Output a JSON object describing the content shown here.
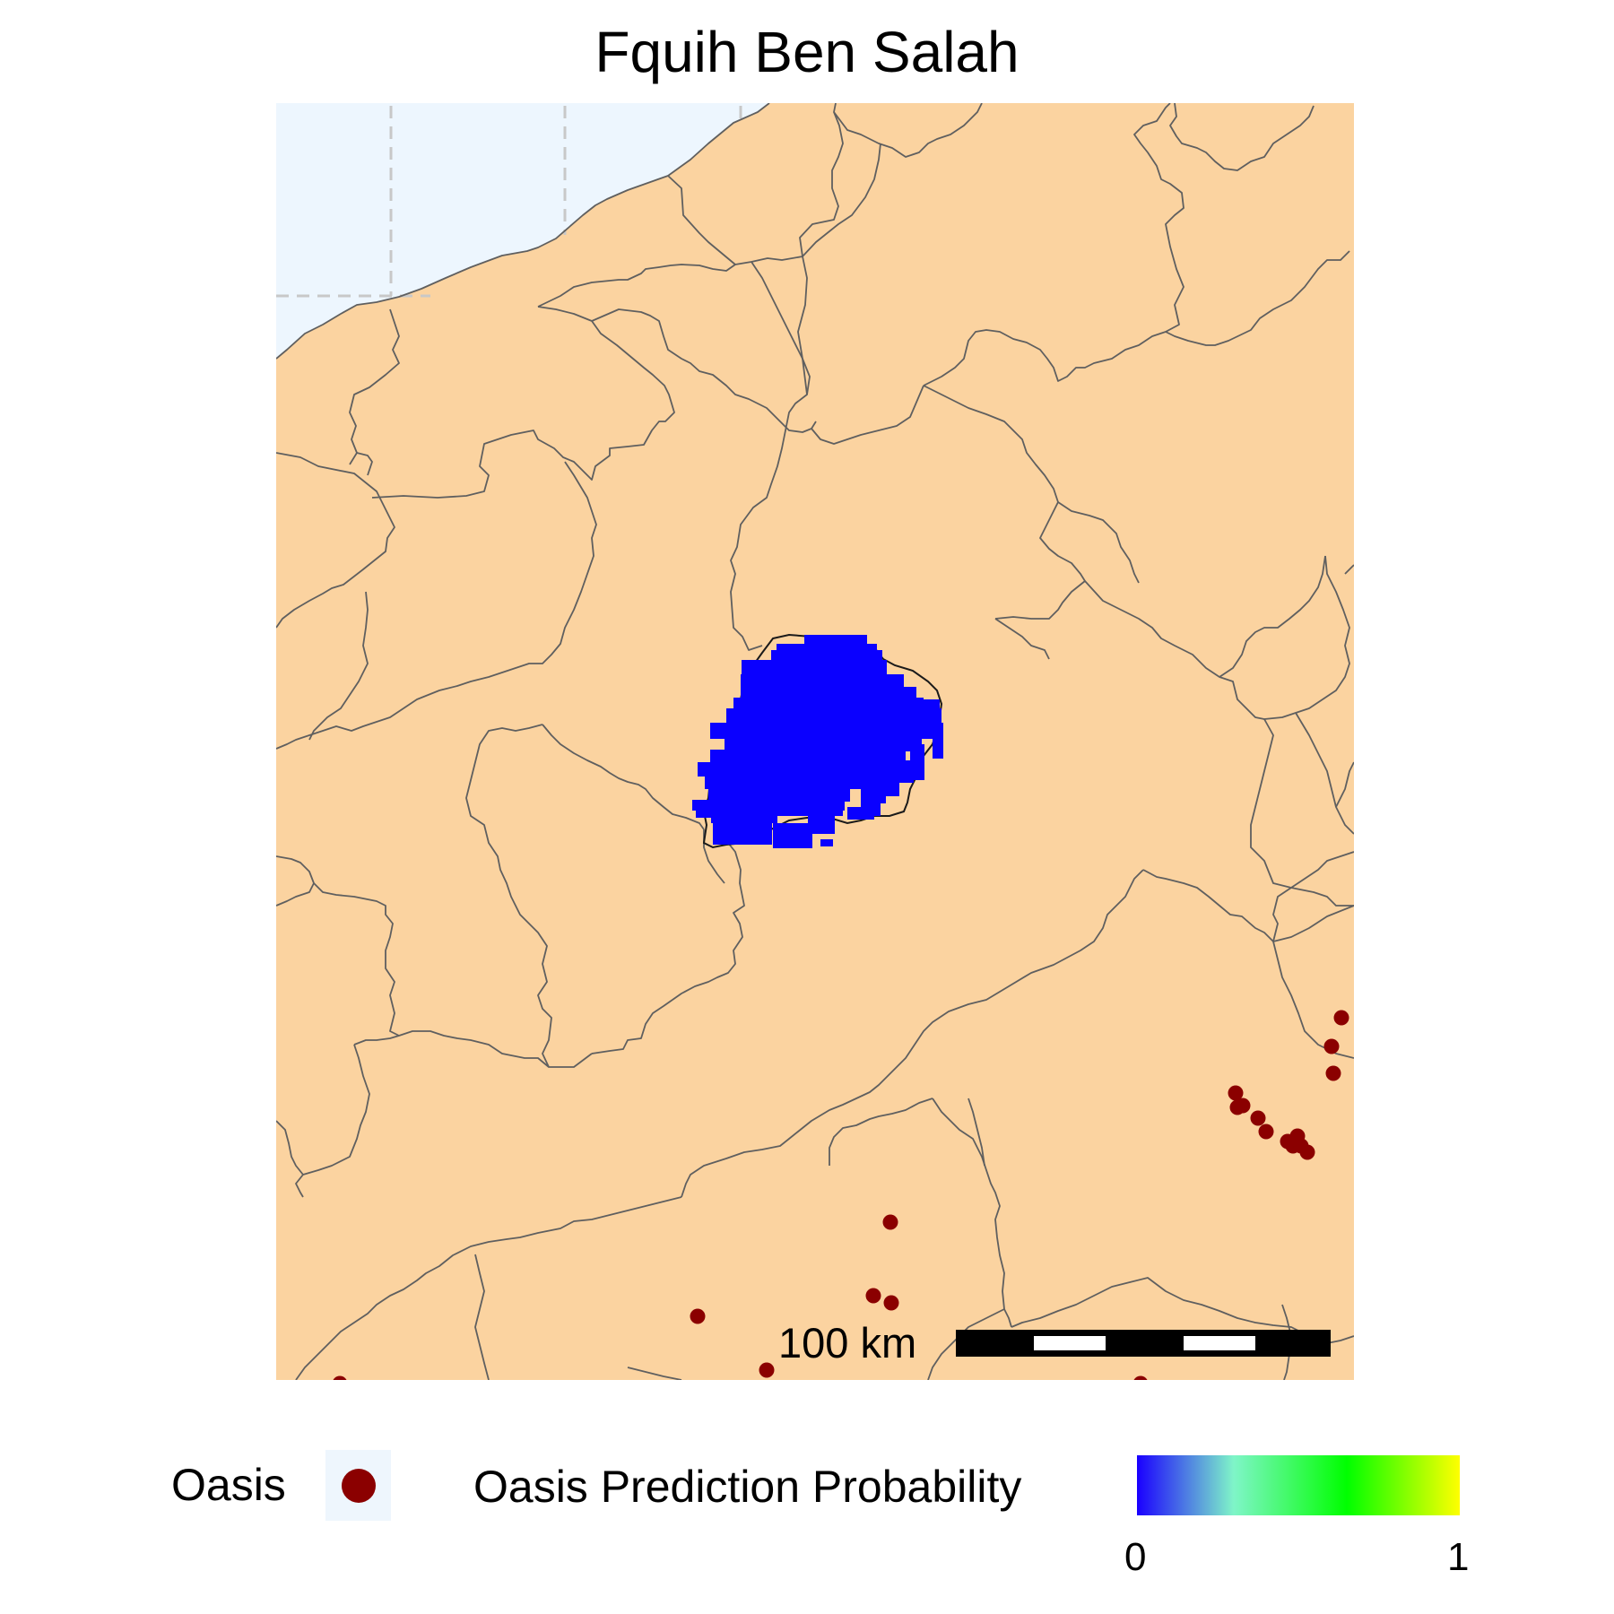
{
  "title": "Fquih Ben Salah",
  "colors": {
    "land": "#fbd3a0",
    "sea": "#edf6fe",
    "border": "#5f5f5f",
    "graticule": "#c8c8c8",
    "prediction": "#0a00ff",
    "oasis": "#8b0000"
  },
  "scale_bar": {
    "label": "100 km",
    "segments": 5,
    "colors": [
      "#000000",
      "#ffffff"
    ]
  },
  "legend": {
    "oasis_label": "Oasis",
    "probability_label": "Oasis Prediction Probability",
    "colorbar_stops": [
      "#0000ff",
      "#7ff5c8",
      "#00ff00",
      "#ffff00"
    ],
    "min_label": "0",
    "max_label": "1"
  },
  "oasis_marker_count": 23
}
